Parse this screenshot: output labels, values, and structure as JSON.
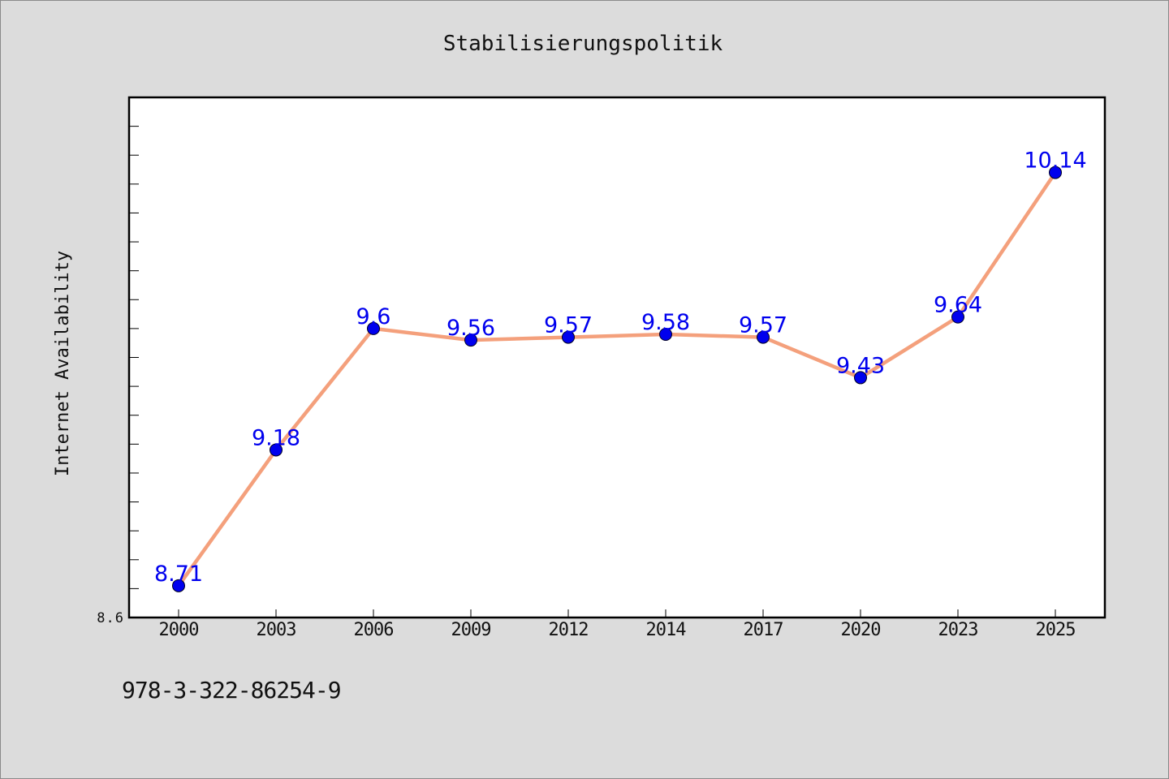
{
  "chart_data": {
    "type": "line",
    "title": "Stabilisierungspolitik",
    "ylabel": "Internet Availability",
    "xlabel": "",
    "categories": [
      "2000",
      "2003",
      "2006",
      "2009",
      "2012",
      "2014",
      "2017",
      "2020",
      "2023",
      "2025"
    ],
    "series": [
      {
        "values": [
          8.71,
          9.18,
          9.6,
          9.56,
          9.57,
          9.58,
          9.57,
          9.43,
          9.64,
          10.14
        ]
      }
    ],
    "ylim": [
      8.6,
      10.4
    ],
    "y_tick_labels": [
      "8.6"
    ],
    "grid": false,
    "legend": "none",
    "colors": {
      "line": "#f4a07c",
      "marker": "#0000ee",
      "label": "#0000ee"
    }
  },
  "footer": {
    "isbn": "978-3-322-86254-9"
  }
}
